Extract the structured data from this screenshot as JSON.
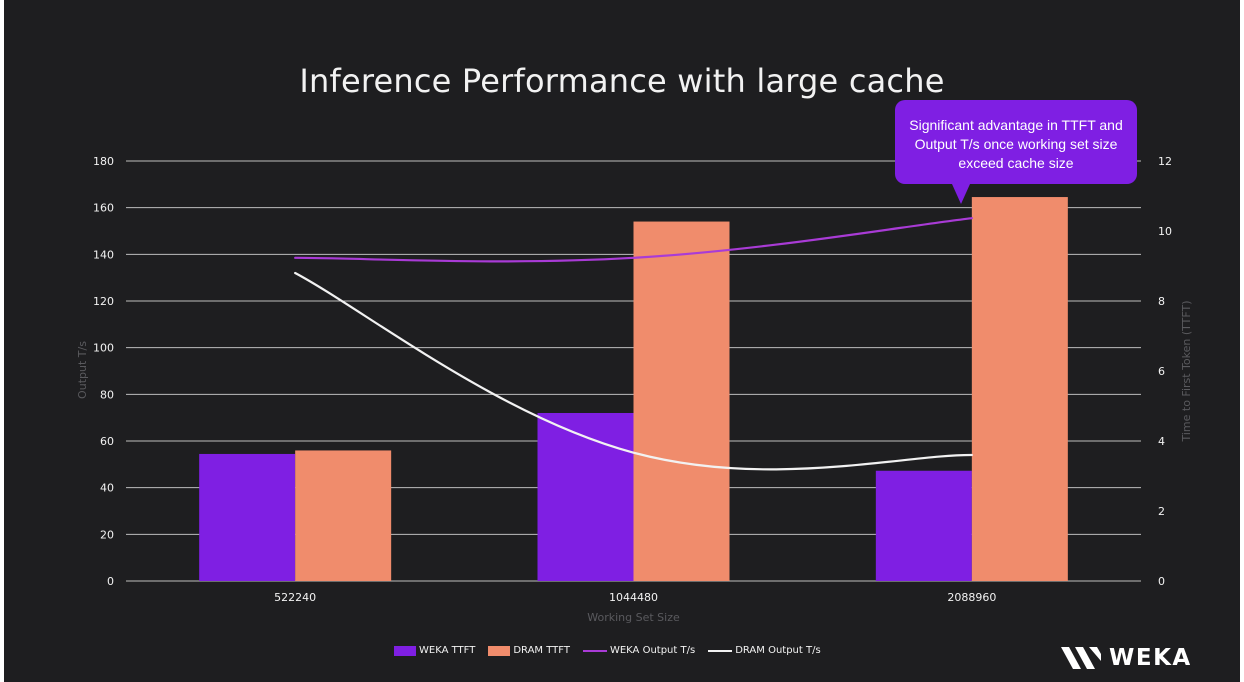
{
  "slide": {
    "title": "Inference Performance with large cache",
    "callout": "Significant advantage in TTFT and Output T/s once working set size exceed cache size",
    "logo_text": "WEKA"
  },
  "colors": {
    "background": "#1e1e20",
    "weka": "#7f1fe3",
    "dram": "#f08c6c",
    "weka_line": "#a93bd6",
    "dram_line": "#f2f2f2",
    "grid": "#d9d9d9"
  },
  "legend": {
    "weka_ttft": "WEKA TTFT",
    "dram_ttft": "DRAM TTFT",
    "weka_output": "WEKA Output T/s",
    "dram_output": "DRAM Output T/s"
  },
  "chart_data": {
    "type": "bar",
    "categories": [
      "522240",
      "1044480",
      "2088960"
    ],
    "xlabel": "Working Set Size",
    "ylabel": "Output T/s",
    "y2label": "Time to First Token (TTFT)",
    "ylim": [
      0,
      180
    ],
    "yticks": [
      "0",
      "20",
      "40",
      "60",
      "80",
      "100",
      "120",
      "140",
      "160",
      "180"
    ],
    "y2lim": [
      0,
      12
    ],
    "y2ticks": [
      "0",
      "2",
      "4",
      "6",
      "8",
      "10",
      "12"
    ],
    "grid": true,
    "legend_position": "bottom",
    "series": [
      {
        "name": "WEKA TTFT",
        "type": "bar",
        "axis": "right",
        "values": [
          3.63,
          4.8,
          3.15
        ]
      },
      {
        "name": "DRAM TTFT",
        "type": "bar",
        "axis": "right",
        "values": [
          3.73,
          10.27,
          10.97
        ]
      },
      {
        "name": "WEKA Output T/s",
        "type": "line",
        "axis": "left",
        "values": [
          138.5,
          138.5,
          155.5
        ]
      },
      {
        "name": "DRAM Output T/s",
        "type": "line",
        "axis": "left",
        "values": [
          132,
          55,
          54
        ]
      }
    ]
  }
}
